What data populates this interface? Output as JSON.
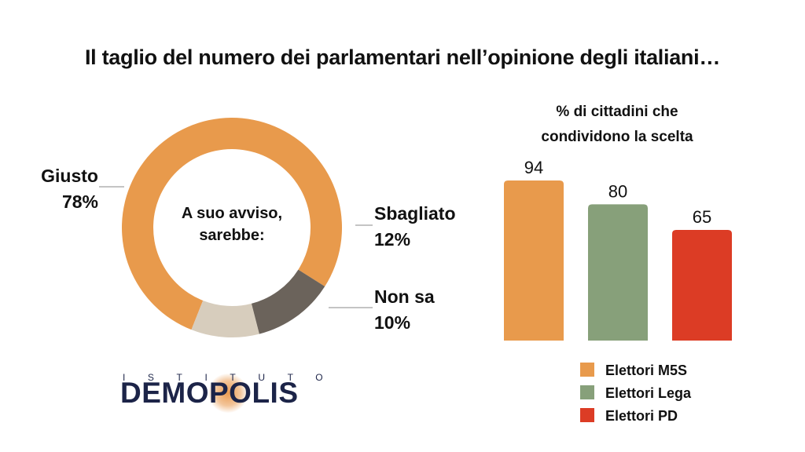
{
  "title": "Il taglio del numero dei parlamentari nell’opinione degli italiani…",
  "chart_data": [
    {
      "type": "pie",
      "center_label": [
        "A suo avviso,",
        "sarebbe:"
      ],
      "slices": [
        {
          "label": "Giusto",
          "value": 78,
          "value_label": "78%",
          "color": "#e89a4c"
        },
        {
          "label": "Sbagliato",
          "value": 12,
          "value_label": "12%",
          "color": "#6b635b"
        },
        {
          "label": "Non sa",
          "value": 10,
          "value_label": "10%",
          "color": "#d7cdbd"
        }
      ]
    },
    {
      "type": "bar",
      "title": [
        "% di cittadini che",
        "condividono la scelta"
      ],
      "categories": [
        "Elettori M5S",
        "Elettori Lega",
        "Elettori PD"
      ],
      "values": [
        94,
        80,
        65
      ],
      "colors": [
        "#e89a4c",
        "#87a07a",
        "#dc3c25"
      ],
      "ylim": [
        0,
        100
      ],
      "legend": "bottom"
    }
  ],
  "logo": {
    "top": "ISTITUTO",
    "main": "DEMOPOLIS"
  }
}
